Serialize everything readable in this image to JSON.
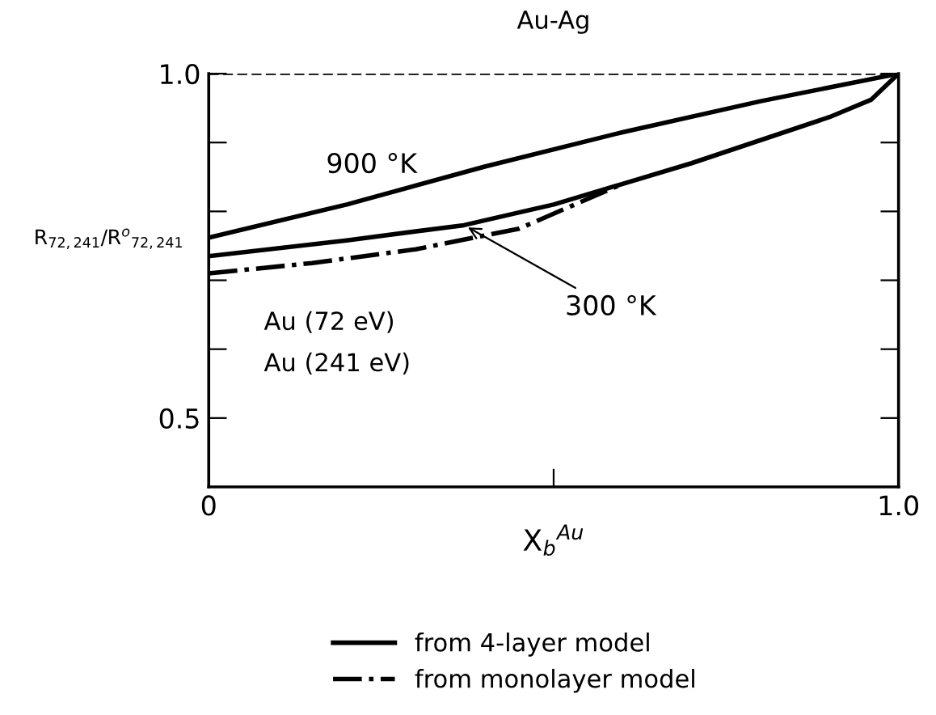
{
  "chart_data": {
    "type": "line",
    "title": "Au-Ag",
    "xlabel": "X$_{b}$$^{Au}$",
    "ylabel": "R$_{72,241}$/R$^{o}$$_{72,241}$",
    "xlim": [
      0,
      1.0
    ],
    "ylim": [
      0.4,
      1.0
    ],
    "xticks": [
      0,
      {
        "value": 0.5,
        "label": null
      },
      {
        "value": 1.0,
        "label": "1.0"
      }
    ],
    "yticks": [
      {
        "value": 0.5,
        "label": "0.5"
      },
      {
        "value": 0.6,
        "label": null
      },
      {
        "value": 0.7,
        "label": null
      },
      {
        "value": 0.8,
        "label": null
      },
      {
        "value": 0.9,
        "label": null
      },
      {
        "value": 1.0,
        "label": "1.0"
      }
    ],
    "tick_labels": "xy",
    "grid": false,
    "legend": "bottom",
    "marker": "none",
    "ref_lines": [
      {
        "axis": "y",
        "value": 1.0,
        "line_style": "dashed",
        "color": "#000000"
      }
    ],
    "series": [
      {
        "name": "from 4-layer model",
        "color": "#000000",
        "line_style": "solid",
        "x": [
          0,
          0.2,
          0.4,
          0.6,
          0.8,
          1.0
        ],
        "values": [
          0.762,
          0.81,
          0.865,
          0.915,
          0.96,
          1.0
        ]
      },
      {
        "color": "#000000",
        "line_style": "solid",
        "x": [
          0,
          0.2,
          0.37,
          0.5,
          0.7,
          0.9,
          0.96,
          1.0
        ],
        "values": [
          0.735,
          0.758,
          0.78,
          0.81,
          0.87,
          0.937,
          0.962,
          1.0
        ]
      },
      {
        "name": "from monolayer model",
        "color": "#000000",
        "line_style": "dashdot",
        "x": [
          0,
          0.15,
          0.3,
          0.45,
          0.6
        ],
        "values": [
          0.71,
          0.725,
          0.745,
          0.775,
          0.84
        ]
      }
    ],
    "annotations": [
      "900 °K",
      {
        "text": "300 °K",
        "x": 0.37,
        "y": 0.78
      },
      "Au (72 eV)",
      "Au (241 eV)"
    ]
  }
}
